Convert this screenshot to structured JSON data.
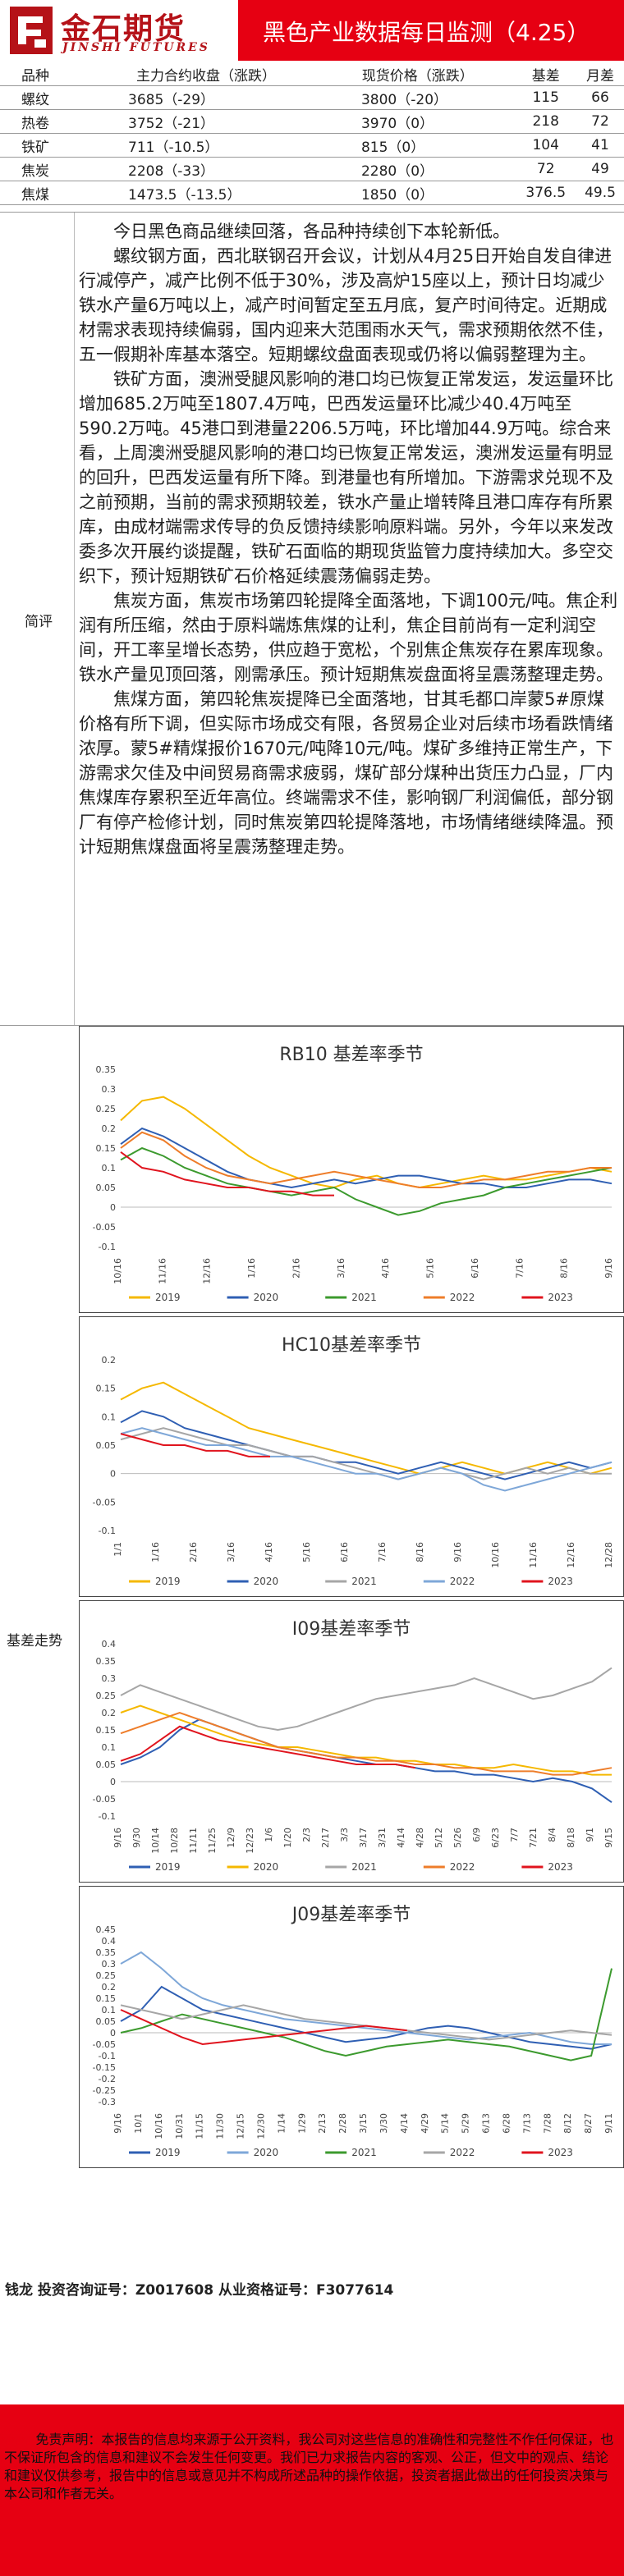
{
  "header": {
    "logo_cn": "金石期货",
    "logo_en": "JINSHI FUTURES",
    "title": "黑色产业数据每日监测（4.25）"
  },
  "price_table": {
    "headers": [
      "品种",
      "主力合约收盘（涨跌）",
      "现货价格（涨跌）",
      "基差",
      "月差"
    ],
    "rows": [
      {
        "name": "螺纹",
        "futures": "3685（-29）",
        "spot": "3800（-20）",
        "basis": "115",
        "spread": "66"
      },
      {
        "name": "热卷",
        "futures": "3752（-21）",
        "spot": "3970（0）",
        "basis": "218",
        "spread": "72"
      },
      {
        "name": "铁矿",
        "futures": "711（-10.5）",
        "spot": "815（0）",
        "basis": "104",
        "spread": "41"
      },
      {
        "name": "焦炭",
        "futures": "2208（-33）",
        "spot": "2280（0）",
        "basis": "72",
        "spread": "49"
      },
      {
        "name": "焦煤",
        "futures": "1473.5（-13.5）",
        "spot": "1850（0）",
        "basis": "376.5",
        "spread": "49.5"
      }
    ]
  },
  "review": {
    "label": "简评",
    "paragraphs": [
      "今日黑色商品继续回落，各品种持续创下本轮新低。",
      "螺纹钢方面，西北联钢召开会议，计划从4月25日开始自发自律进行减停产，减产比例不低于30%，涉及高炉15座以上，预计日均减少铁水产量6万吨以上，减产时间暂定至五月底，复产时间待定。近期成材需求表现持续偏弱，国内迎来大范围雨水天气，需求预期依然不佳，五一假期补库基本落空。短期螺纹盘面表现或仍将以偏弱整理为主。",
      "铁矿方面，澳洲受腿风影响的港口均已恢复正常发运，发运量环比增加685.2万吨至1807.4万吨，巴西发运量环比减少40.4万吨至590.2万吨。45港口到港量2206.5万吨，环比增加44.9万吨。综合来看，上周澳洲受腿风影响的港口均已恢复正常发运，澳洲发运量有明显的回升，巴西发运量有所下降。到港量也有所增加。下游需求兑现不及之前预期，当前的需求预期较差，铁水产量止增转降且港口库存有所累库，由成材端需求传导的负反馈持续影响原料端。另外，今年以来发改委多次开展约谈提醒，铁矿石面临的期现货监管力度持续加大。多空交织下，预计短期铁矿石价格延续震荡偏弱走势。",
      "焦炭方面，焦炭市场第四轮提降全面落地，下调100元/吨。焦企利润有所压缩，然由于原料端炼焦煤的让利，焦企目前尚有一定利润空间，开工率呈增长态势，供应趋于宽松，个别焦企焦炭存在累库现象。铁水产量见顶回落，刚需承压。预计短期焦炭盘面将呈震荡整理走势。",
      "焦煤方面，第四轮焦炭提降已全面落地，甘其毛都口岸蒙5#原煤价格有所下调，但实际市场成交有限，各贸易企业对后续市场看跌情绪浓厚。蒙5#精煤报价1670元/吨降10元/吨。煤矿多维持正常生产，下游需求欠佳及中间贸易商需求疲弱，煤矿部分煤种出货压力凸显，厂内焦煤库存累积至近年高位。终端需求不佳，影响钢厂利润偏低，部分钢厂有停产检修计划，同时焦炭第四轮提降落地，市场情绪继续降温。预计短期焦煤盘面将呈震荡整理走势。"
    ]
  },
  "charts_label": "基差走势",
  "colors": {
    "y2019": "#f5b800",
    "y2020": "#2f5fb3",
    "y2021": "#3c9a2e",
    "y2022": "#ee7d2a",
    "y2023": "#e0141e",
    "y2021_grey": "#a6a6a6",
    "y2022_light": "#7ea7d8",
    "brand_red": "#e60012"
  },
  "chart_data": [
    {
      "type": "line",
      "title": "RB10 基差率季节",
      "ylim": [
        -0.1,
        0.35
      ],
      "yticks": [
        "0.35",
        "0.3",
        "0.25",
        "0.2",
        "0.15",
        "0.1",
        "0.05",
        "0",
        "-0.05",
        "-0.1"
      ],
      "xticks": [
        "10/16",
        "11/16",
        "12/16",
        "1/16",
        "2/16",
        "3/16",
        "4/16",
        "5/16",
        "6/16",
        "7/16",
        "8/16",
        "9/16"
      ],
      "series": [
        {
          "name": "2019",
          "color_key": "y2019",
          "values": [
            0.22,
            0.27,
            0.28,
            0.25,
            0.21,
            0.17,
            0.13,
            0.1,
            0.08,
            0.06,
            0.05,
            0.07,
            0.08,
            0.06,
            0.05,
            0.06,
            0.07,
            0.08,
            0.07,
            0.07,
            0.08,
            0.09,
            0.1,
            0.09
          ]
        },
        {
          "name": "2020",
          "color_key": "y2020",
          "values": [
            0.16,
            0.2,
            0.18,
            0.15,
            0.12,
            0.09,
            0.07,
            0.06,
            0.05,
            0.06,
            0.07,
            0.06,
            0.07,
            0.08,
            0.08,
            0.07,
            0.06,
            0.06,
            0.05,
            0.05,
            0.06,
            0.07,
            0.07,
            0.06
          ]
        },
        {
          "name": "2021",
          "color_key": "y2021",
          "values": [
            0.12,
            0.15,
            0.13,
            0.1,
            0.08,
            0.06,
            0.05,
            0.04,
            0.03,
            0.04,
            0.05,
            0.02,
            0.0,
            -0.02,
            -0.01,
            0.01,
            0.02,
            0.03,
            0.05,
            0.06,
            0.07,
            0.08,
            0.09,
            0.1
          ]
        },
        {
          "name": "2022",
          "color_key": "y2022",
          "values": [
            0.15,
            0.19,
            0.17,
            0.13,
            0.1,
            0.08,
            0.07,
            0.06,
            0.07,
            0.08,
            0.09,
            0.08,
            0.07,
            0.06,
            0.05,
            0.05,
            0.06,
            0.07,
            0.07,
            0.08,
            0.09,
            0.09,
            0.1,
            0.1
          ]
        },
        {
          "name": "2023",
          "color_key": "y2023",
          "values": [
            0.14,
            0.1,
            0.09,
            0.07,
            0.06,
            0.05,
            0.05,
            0.04,
            0.04,
            0.03,
            0.03,
            null,
            null,
            null,
            null,
            null,
            null,
            null,
            null,
            null,
            null,
            null,
            null,
            null
          ]
        }
      ]
    },
    {
      "type": "line",
      "title": "HC10基差率季节",
      "ylim": [
        -0.1,
        0.2
      ],
      "yticks": [
        "0.2",
        "0.15",
        "0.1",
        "0.05",
        "0",
        "-0.05",
        "-0.1"
      ],
      "xticks": [
        "1/1",
        "1/16",
        "2/16",
        "3/16",
        "4/16",
        "5/16",
        "6/16",
        "7/16",
        "8/16",
        "9/16",
        "10/16",
        "11/16",
        "12/16",
        "12/28"
      ],
      "series": [
        {
          "name": "2019",
          "color_key": "y2019",
          "values": [
            0.13,
            0.15,
            0.16,
            0.14,
            0.12,
            0.1,
            0.08,
            0.07,
            0.06,
            0.05,
            0.04,
            0.03,
            0.02,
            0.01,
            0.0,
            0.01,
            0.02,
            0.01,
            0.0,
            0.01,
            0.02,
            0.01,
            0.0,
            0.01
          ]
        },
        {
          "name": "2020",
          "color_key": "y2020",
          "values": [
            0.09,
            0.11,
            0.1,
            0.08,
            0.07,
            0.06,
            0.05,
            0.04,
            0.03,
            0.03,
            0.02,
            0.02,
            0.01,
            0.0,
            0.01,
            0.02,
            0.01,
            0.0,
            -0.01,
            0.0,
            0.01,
            0.02,
            0.01,
            0.02
          ]
        },
        {
          "name": "2021",
          "color_key": "y2021_grey",
          "values": [
            0.06,
            0.07,
            0.08,
            0.07,
            0.06,
            0.05,
            0.05,
            0.04,
            0.03,
            0.03,
            0.02,
            0.01,
            0.0,
            -0.01,
            0.0,
            0.01,
            0.0,
            -0.01,
            0.0,
            0.01,
            0.0,
            0.01,
            0.0,
            0.0
          ]
        },
        {
          "name": "2022",
          "color_key": "y2022_light",
          "values": [
            0.07,
            0.08,
            0.07,
            0.06,
            0.05,
            0.05,
            0.04,
            0.03,
            0.03,
            0.02,
            0.01,
            0.0,
            0.0,
            -0.01,
            0.0,
            0.01,
            0.0,
            -0.02,
            -0.03,
            -0.02,
            -0.01,
            0.0,
            0.01,
            0.02
          ]
        },
        {
          "name": "2023",
          "color_key": "y2023",
          "values": [
            0.07,
            0.06,
            0.05,
            0.05,
            0.04,
            0.04,
            0.03,
            0.03,
            null,
            null,
            null,
            null,
            null,
            null,
            null,
            null,
            null,
            null,
            null,
            null,
            null,
            null,
            null,
            null
          ]
        }
      ]
    },
    {
      "type": "line",
      "title": "I09基差率季节",
      "ylim": [
        -0.1,
        0.4
      ],
      "yticks": [
        "0.4",
        "0.35",
        "0.3",
        "0.25",
        "0.2",
        "0.15",
        "0.1",
        "0.05",
        "0",
        "-0.05",
        "-0.1"
      ],
      "xticks": [
        "9/16",
        "9/30",
        "10/14",
        "10/28",
        "11/11",
        "11/25",
        "12/9",
        "12/23",
        "1/6",
        "1/20",
        "2/3",
        "2/17",
        "3/3",
        "3/17",
        "3/31",
        "4/14",
        "4/28",
        "5/12",
        "5/26",
        "6/9",
        "6/23",
        "7/7",
        "7/21",
        "8/4",
        "8/18",
        "9/1",
        "9/15"
      ],
      "series": [
        {
          "name": "2019",
          "color_key": "y2020",
          "values": [
            0.05,
            0.07,
            0.1,
            0.15,
            0.18,
            0.16,
            0.14,
            0.12,
            0.1,
            0.09,
            0.08,
            0.07,
            0.06,
            0.05,
            0.05,
            0.04,
            0.03,
            0.03,
            0.02,
            0.02,
            0.01,
            0.0,
            0.01,
            0.0,
            -0.02,
            -0.06
          ]
        },
        {
          "name": "2020",
          "color_key": "y2019",
          "values": [
            0.2,
            0.22,
            0.2,
            0.18,
            0.16,
            0.14,
            0.12,
            0.11,
            0.1,
            0.1,
            0.09,
            0.08,
            0.07,
            0.07,
            0.06,
            0.06,
            0.05,
            0.05,
            0.04,
            0.04,
            0.05,
            0.04,
            0.03,
            0.03,
            0.02,
            0.02
          ]
        },
        {
          "name": "2021",
          "color_key": "y2021_grey",
          "values": [
            0.25,
            0.28,
            0.26,
            0.24,
            0.22,
            0.2,
            0.18,
            0.16,
            0.15,
            0.16,
            0.18,
            0.2,
            0.22,
            0.24,
            0.25,
            0.26,
            0.27,
            0.28,
            0.3,
            0.28,
            0.26,
            0.24,
            0.25,
            0.27,
            0.29,
            0.33
          ]
        },
        {
          "name": "2022",
          "color_key": "y2022",
          "values": [
            0.14,
            0.16,
            0.18,
            0.2,
            0.18,
            0.16,
            0.14,
            0.12,
            0.1,
            0.09,
            0.08,
            0.07,
            0.07,
            0.06,
            0.06,
            0.05,
            0.05,
            0.04,
            0.04,
            0.03,
            0.03,
            0.03,
            0.02,
            0.02,
            0.03,
            0.04
          ]
        },
        {
          "name": "2023",
          "color_key": "y2023",
          "values": [
            0.06,
            0.08,
            0.12,
            0.16,
            0.14,
            0.12,
            0.11,
            0.1,
            0.09,
            0.08,
            0.07,
            0.06,
            0.05,
            0.05,
            0.05,
            0.04,
            null,
            null,
            null,
            null,
            null,
            null,
            null,
            null,
            null,
            null
          ]
        }
      ]
    },
    {
      "type": "line",
      "title": "J09基差率季节",
      "ylim": [
        -0.3,
        0.45
      ],
      "yticks": [
        "0.45",
        "0.4",
        "0.35",
        "0.3",
        "0.25",
        "0.2",
        "0.15",
        "0.1",
        "0.05",
        "0",
        "-0.05",
        "-0.1",
        "-0.15",
        "-0.2",
        "-0.25",
        "-0.3"
      ],
      "xticks": [
        "9/16",
        "10/1",
        "10/16",
        "10/31",
        "11/15",
        "11/30",
        "12/15",
        "12/30",
        "1/14",
        "1/29",
        "2/13",
        "2/28",
        "3/15",
        "3/30",
        "4/14",
        "4/29",
        "5/14",
        "5/29",
        "6/13",
        "6/28",
        "7/13",
        "7/28",
        "8/12",
        "8/27",
        "9/11"
      ],
      "series": [
        {
          "name": "2019",
          "color_key": "y2020",
          "values": [
            0.05,
            0.1,
            0.2,
            0.15,
            0.1,
            0.08,
            0.06,
            0.04,
            0.02,
            0.0,
            -0.02,
            -0.04,
            -0.03,
            -0.02,
            0.0,
            0.02,
            0.03,
            0.02,
            0.0,
            -0.02,
            -0.04,
            -0.05,
            -0.06,
            -0.07,
            -0.05
          ]
        },
        {
          "name": "2020",
          "color_key": "y2022_light",
          "values": [
            0.3,
            0.35,
            0.28,
            0.2,
            0.15,
            0.12,
            0.1,
            0.08,
            0.06,
            0.05,
            0.04,
            0.03,
            0.02,
            0.01,
            0.0,
            -0.01,
            -0.02,
            -0.03,
            -0.02,
            -0.01,
            0.0,
            -0.02,
            -0.04,
            -0.05,
            -0.05
          ]
        },
        {
          "name": "2021",
          "color_key": "y2021",
          "values": [
            0.0,
            0.02,
            0.05,
            0.08,
            0.06,
            0.04,
            0.02,
            0.0,
            -0.02,
            -0.05,
            -0.08,
            -0.1,
            -0.08,
            -0.06,
            -0.05,
            -0.04,
            -0.03,
            -0.04,
            -0.05,
            -0.06,
            -0.08,
            -0.1,
            -0.12,
            -0.1,
            0.28
          ]
        },
        {
          "name": "2022",
          "color_key": "y2021_grey",
          "values": [
            0.12,
            0.1,
            0.08,
            0.06,
            0.08,
            0.1,
            0.12,
            0.1,
            0.08,
            0.06,
            0.05,
            0.04,
            0.03,
            0.02,
            0.01,
            0.0,
            -0.01,
            -0.02,
            -0.03,
            -0.02,
            -0.01,
            0.0,
            0.01,
            0.0,
            -0.01
          ]
        },
        {
          "name": "2023",
          "color_key": "y2023",
          "values": [
            0.1,
            0.06,
            0.02,
            -0.02,
            -0.05,
            -0.04,
            -0.03,
            -0.02,
            -0.01,
            0.0,
            0.01,
            0.02,
            0.03,
            0.02,
            0.01,
            null,
            null,
            null,
            null,
            null,
            null,
            null,
            null,
            null,
            null
          ]
        }
      ]
    }
  ],
  "analyst": "钱龙 投资咨询证号：Z0017608 从业资格证号：F3077614",
  "disclaimer": "免责声明：本报告的信息均来源于公开资料，我公司对这些信息的准确性和完整性不作任何保证，也不保证所包含的信息和建议不会发生任何变更。我们已力求报告内容的客观、公正，但文中的观点、结论和建议仅供参考，报告中的信息或意见并不构成所述品种的操作依据，投资者据此做出的任何投资决策与本公司和作者无关。"
}
